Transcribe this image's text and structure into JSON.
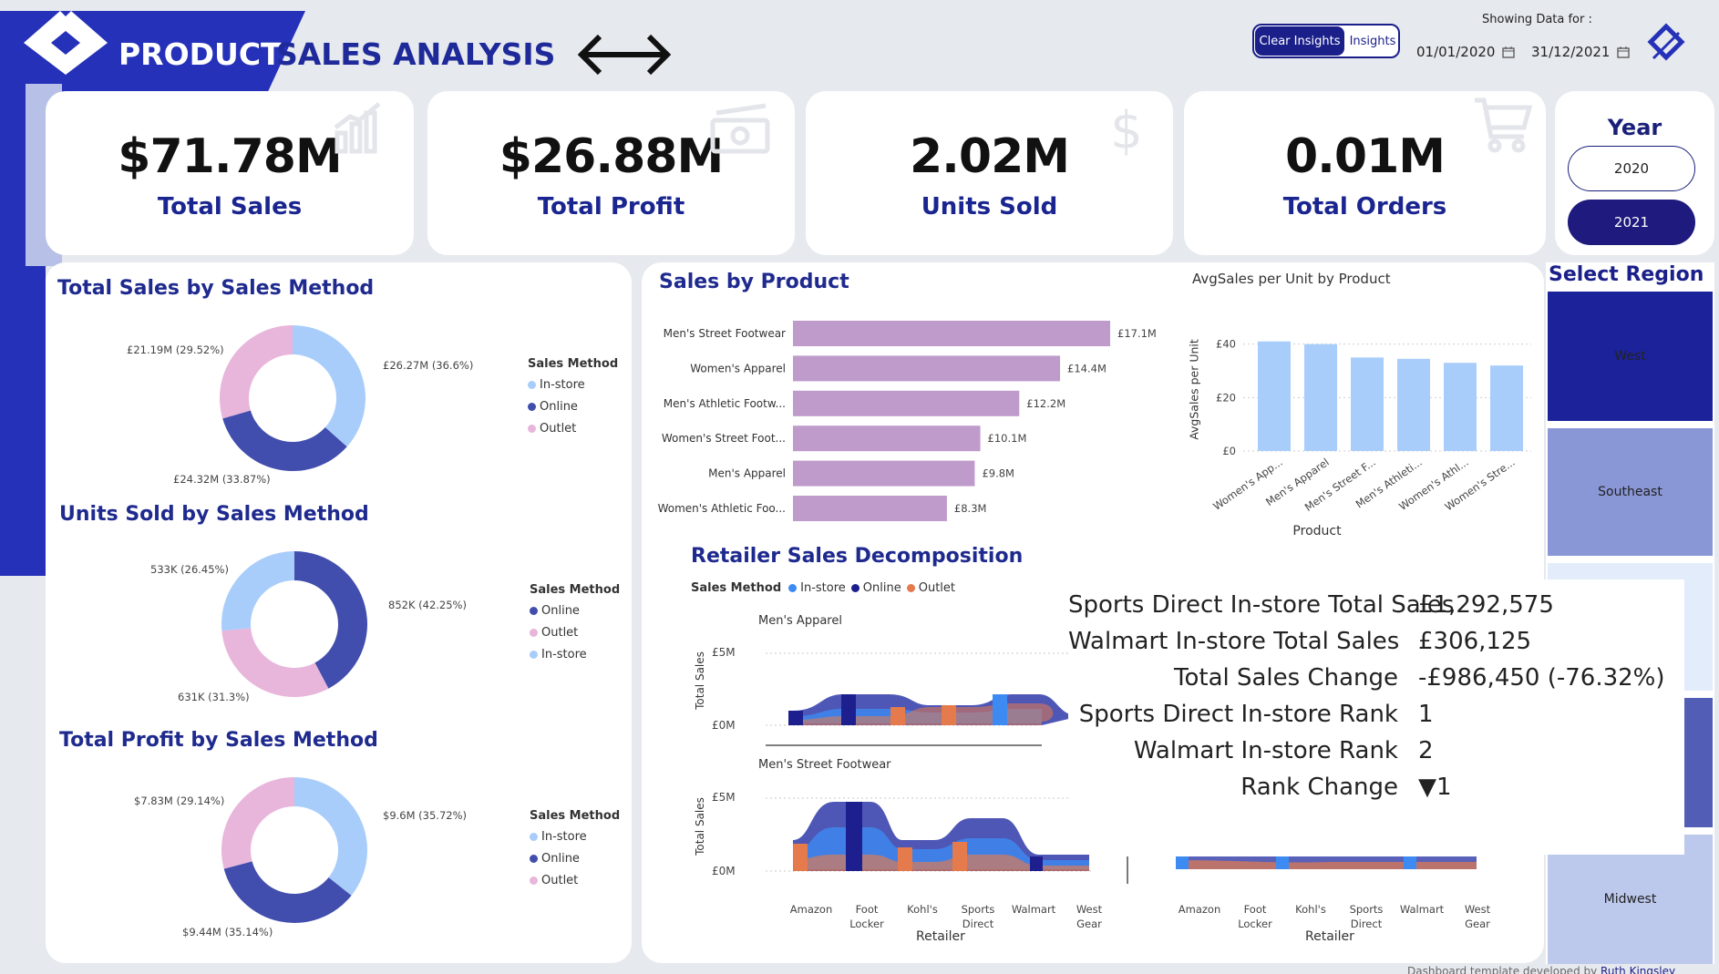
{
  "header": {
    "title_part1": "PRODUCT",
    "title_part2": "SALES ANALYSIS",
    "nav_arrows": "⟵⟶",
    "clear_insights_label": "Clear Insights",
    "insights_label": "Insights",
    "showing_data_label": "Showing Data for :",
    "start_date": "01/01/2020",
    "end_date": "31/12/2021",
    "calendar_icon": "calendar-icon"
  },
  "kpis": [
    {
      "value": "$71.78M",
      "label": "Total Sales",
      "icon": "bar-chart-icon"
    },
    {
      "value": "$26.88M",
      "label": "Total Profit",
      "icon": "money-icon"
    },
    {
      "value": "2.02M",
      "label": "Units Sold",
      "icon": "dollar-icon"
    },
    {
      "value": "0.01M",
      "label": "Total Orders",
      "icon": "cart-icon"
    }
  ],
  "year_filter": {
    "title": "Year",
    "options": [
      "2020",
      "2021"
    ],
    "selected": "2021"
  },
  "region_filter": {
    "title": "Select Region",
    "tiles": [
      "West",
      "Southeast",
      "Midwest"
    ]
  },
  "colors": {
    "navy": "#1a1f8a",
    "light_blue": "#a9cdfb",
    "dark_indigo": "#414ead",
    "pink": "#e8b5db",
    "purple_bar": "#be9bcb",
    "orange": "#e57a4c",
    "bright_blue": "#3d8bf2",
    "deep_navy": "#1c1f8d"
  },
  "donut_sales": {
    "title": "Total Sales by Sales Method",
    "legend_title": "Sales Method",
    "legend": [
      "In-store",
      "Online",
      "Outlet"
    ],
    "labels": [
      "£26.27M (36.6%)",
      "£24.32M (33.87%)",
      "£21.19M (29.52%)"
    ]
  },
  "donut_units": {
    "title": "Units Sold by Sales Method",
    "legend_title": "Sales Method",
    "legend": [
      "Online",
      "Outlet",
      "In-store"
    ],
    "labels": [
      "852K (42.25%)",
      "631K (31.3%)",
      "533K (26.45%)"
    ]
  },
  "donut_profit": {
    "title": "Total Profit by Sales Method",
    "legend_title": "Sales Method",
    "legend": [
      "In-store",
      "Online",
      "Outlet"
    ],
    "labels": [
      "$9.6M (35.72%)",
      "$9.44M (35.14%)",
      "$7.83M (29.14%)"
    ]
  },
  "sales_by_product": {
    "title": "Sales by Product"
  },
  "avg_sales": {
    "title": "AvgSales per Unit by Product",
    "ylabel": "AvgSales per Unit",
    "xlabel": "Product",
    "y_ticks": [
      "£40",
      "£20",
      "£0"
    ]
  },
  "decomposition": {
    "title": "Retailer Sales Decomposition",
    "legend_title": "Sales Method",
    "legend": [
      "In-store",
      "Online",
      "Outlet"
    ],
    "panel1_title": "Men's Apparel",
    "panel2_title": "Men's Street Footwear",
    "ylabel": "Total Sales",
    "y_ticks": [
      "£5M",
      "£0M"
    ],
    "xlabel": "Retailer",
    "retailers_line1": [
      "Amazon",
      "Foot",
      "Kohl's",
      "Sports",
      "Walmart",
      "West"
    ],
    "retailers_line2": [
      "",
      "Locker",
      "",
      "Direct",
      "",
      "Gear"
    ]
  },
  "tooltip": {
    "rows": [
      {
        "label": "Sports Direct In-store Total Sales",
        "value": "£1,292,575"
      },
      {
        "label": "Walmart In-store Total Sales",
        "value": "£306,125"
      },
      {
        "label": "Total Sales Change",
        "value": "-£986,450 (-76.32%)"
      },
      {
        "label": "Sports Direct In-store Rank",
        "value": "1"
      },
      {
        "label": "Walmart In-store Rank",
        "value": "2"
      },
      {
        "label": "Rank Change",
        "value": "▼1"
      }
    ]
  },
  "footer": {
    "credit": "Dashboard template developed by",
    "credit_link": "Ruth Kingsley"
  },
  "chart_data": [
    {
      "type": "pie",
      "title": "Total Sales by Sales Method",
      "categories": [
        "In-store",
        "Online",
        "Outlet"
      ],
      "values": [
        36.6,
        33.87,
        29.52
      ],
      "colors": [
        "#a9cdfb",
        "#414ead",
        "#e8b5db"
      ]
    },
    {
      "type": "pie",
      "title": "Units Sold by Sales Method",
      "categories": [
        "Online",
        "Outlet",
        "In-store"
      ],
      "values": [
        42.25,
        31.3,
        26.45
      ],
      "colors": [
        "#414ead",
        "#e8b5db",
        "#a9cdfb"
      ]
    },
    {
      "type": "pie",
      "title": "Total Profit by Sales Method",
      "categories": [
        "In-store",
        "Online",
        "Outlet"
      ],
      "values": [
        35.72,
        35.14,
        29.14
      ],
      "colors": [
        "#a9cdfb",
        "#414ead",
        "#e8b5db"
      ]
    },
    {
      "type": "bar",
      "title": "Sales by Product",
      "orientation": "horizontal",
      "categories": [
        "Men's Street Footwear",
        "Women's Apparel",
        "Men's Athletic Footw...",
        "Women's Street Foot...",
        "Men's Apparel",
        "Women's Athletic Foo..."
      ],
      "values": [
        17.1,
        14.4,
        12.2,
        10.1,
        9.8,
        8.3
      ],
      "value_labels": [
        "£17.1M",
        "£14.4M",
        "£12.2M",
        "£10.1M",
        "£9.8M",
        "£8.3M"
      ],
      "xlim": [
        0,
        19
      ]
    },
    {
      "type": "bar",
      "title": "AvgSales per Unit by Product",
      "categories": [
        "Women's App...",
        "Men's Apparel",
        "Men's Street F...",
        "Men's Athleti...",
        "Women's Athl...",
        "Women's Stre..."
      ],
      "values": [
        41,
        40,
        35,
        34.5,
        33,
        32
      ],
      "ylabel": "AvgSales per Unit",
      "xlabel": "Product",
      "ylim": [
        0,
        45
      ]
    }
  ]
}
